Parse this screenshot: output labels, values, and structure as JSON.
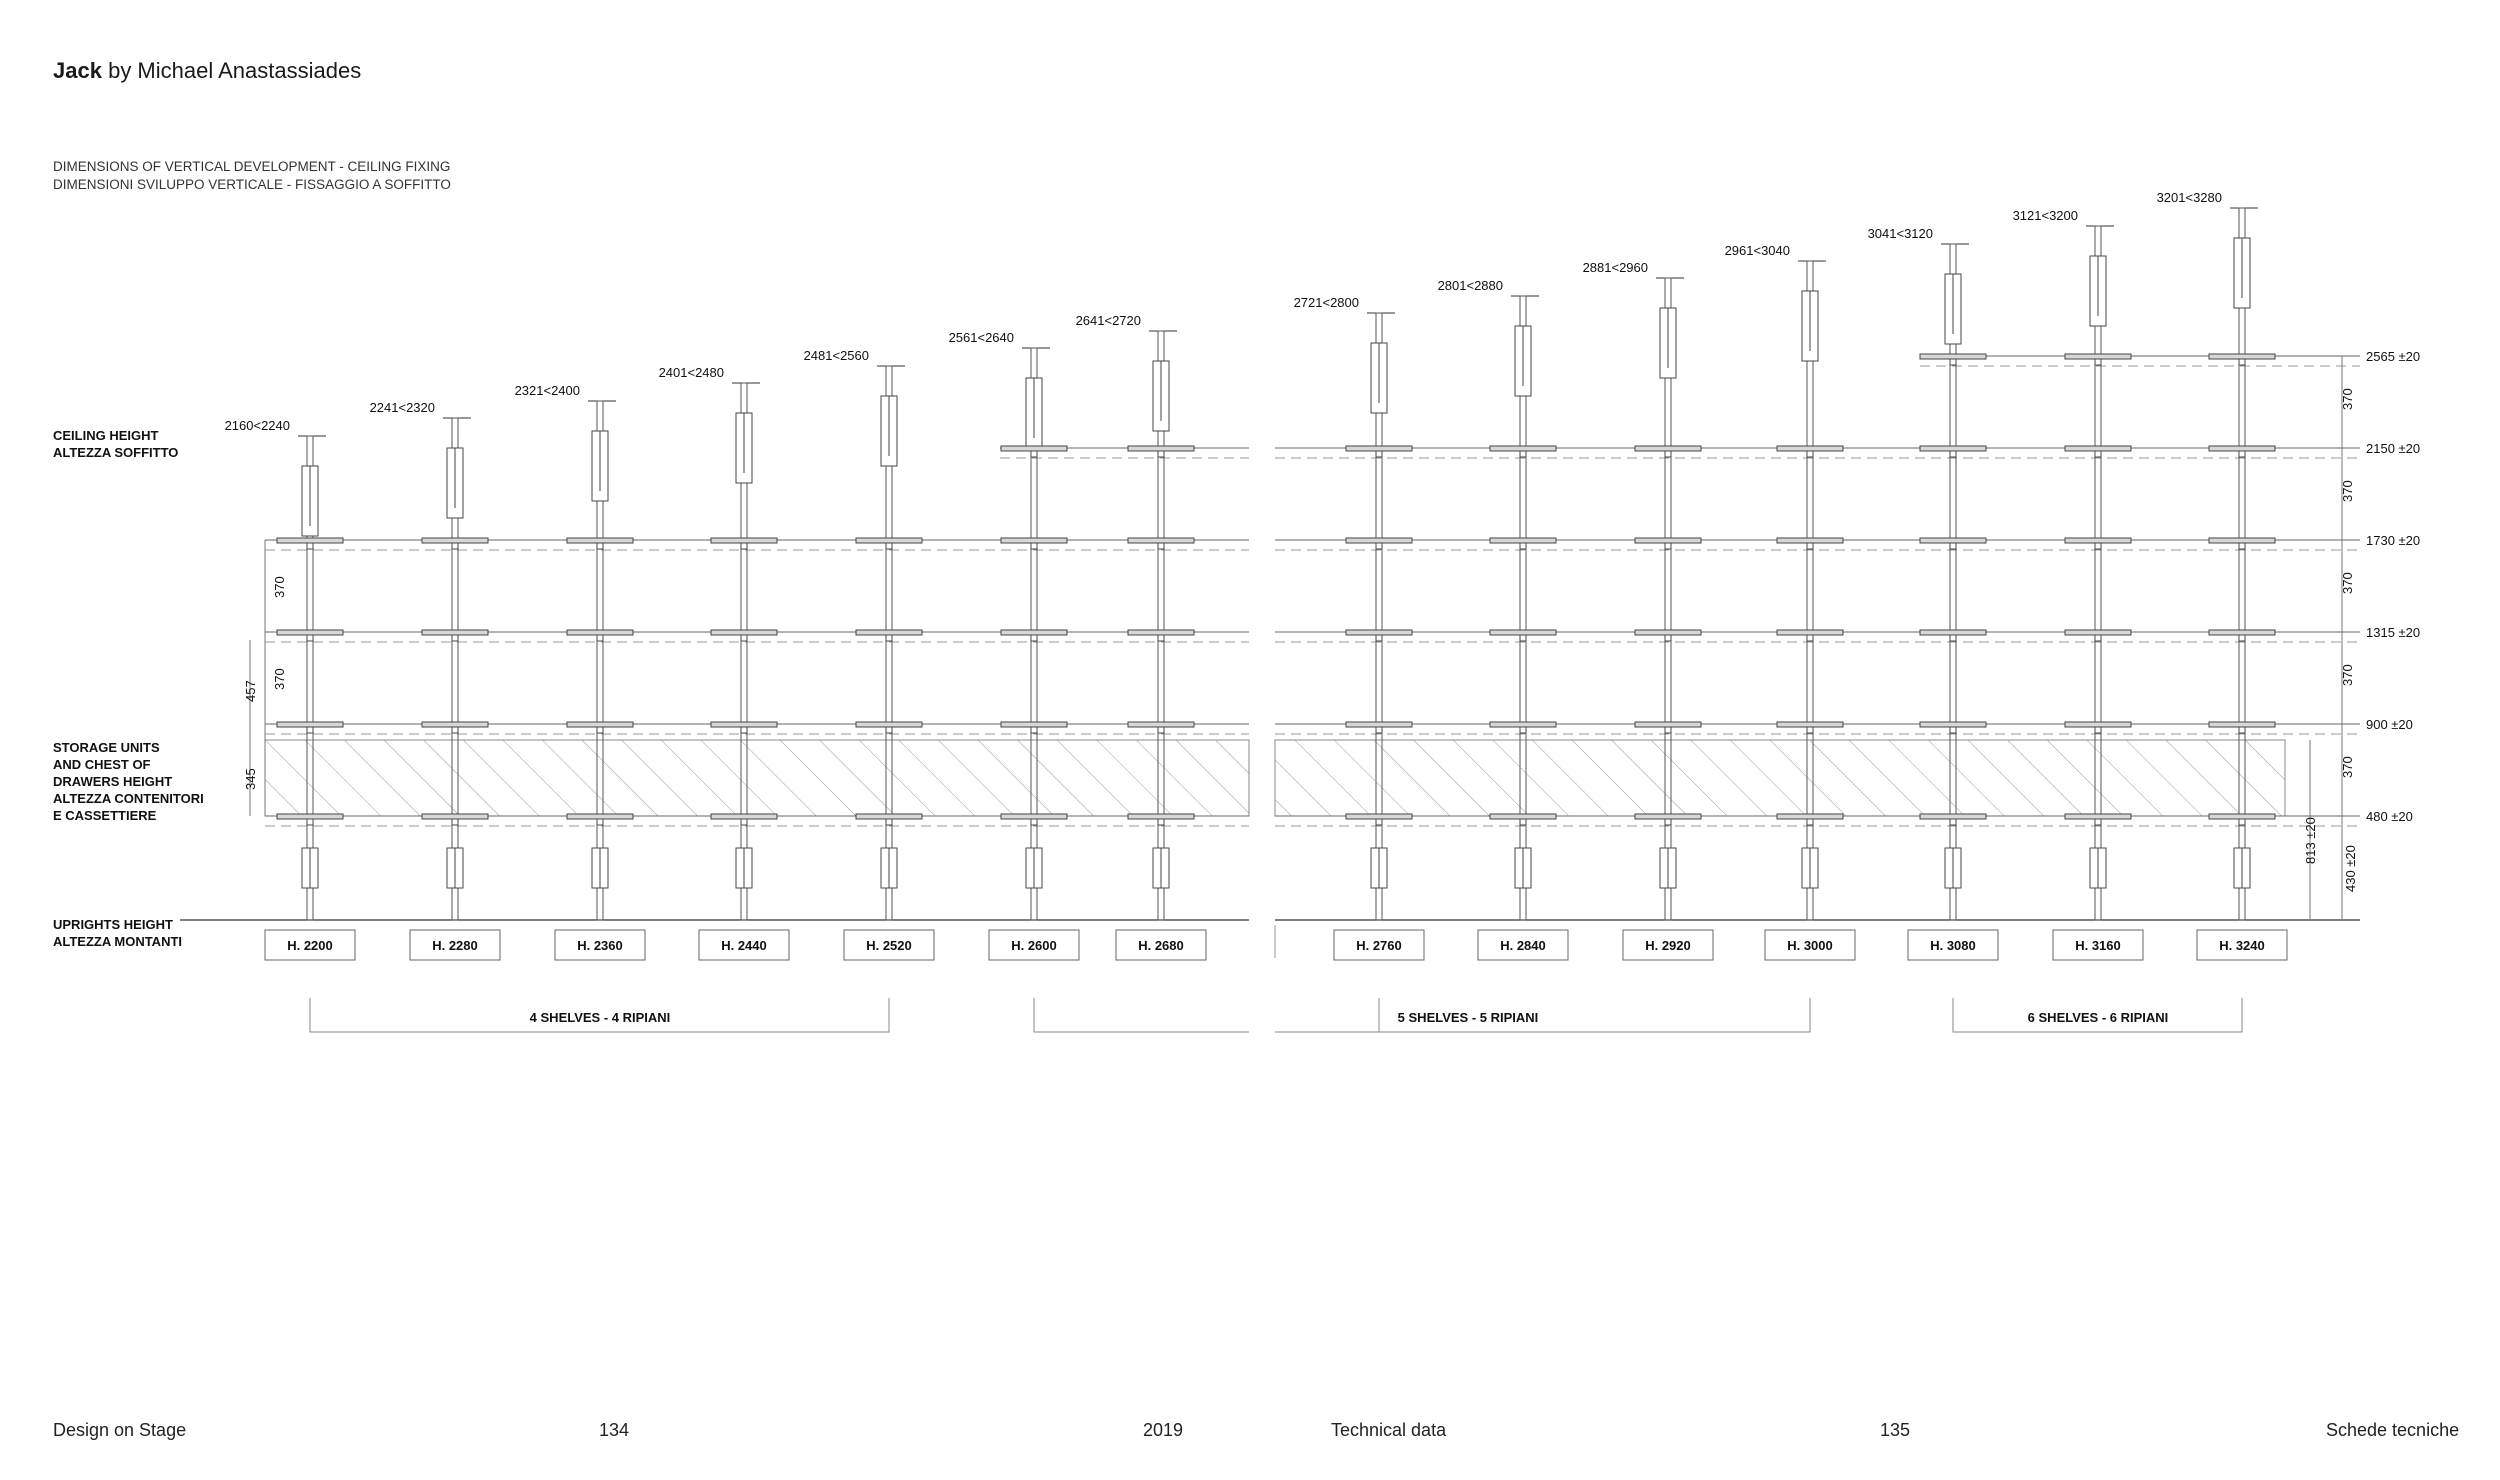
{
  "header": {
    "title_bold": "Jack",
    "title_rest": "by Michael Anastassiades",
    "subtitle_line1": "DIMENSIONS OF VERTICAL DEVELOPMENT - CEILING FIXING",
    "subtitle_line2": "DIMENSIONI SVILUPPO VERTICALE - FISSAGGIO A SOFFITTO"
  },
  "side_labels": {
    "ceiling": [
      "CEILING HEIGHT",
      "ALTEZZA SOFFITTO"
    ],
    "storage": [
      "STORAGE UNITS",
      "AND CHEST OF",
      "DRAWERS HEIGHT",
      "ALTEZZA CONTENITORI",
      "E CASSETTIERE"
    ],
    "uprights": [
      "UPRIGHTS HEIGHT",
      "ALTEZZA MONTANTI"
    ]
  },
  "columns": [
    {
      "ceiling": "2160<2240",
      "upright": "H. 2200",
      "shelves": 4
    },
    {
      "ceiling": "2241<2320",
      "upright": "H. 2280",
      "shelves": 4
    },
    {
      "ceiling": "2321<2400",
      "upright": "H. 2360",
      "shelves": 4
    },
    {
      "ceiling": "2401<2480",
      "upright": "H. 2440",
      "shelves": 4
    },
    {
      "ceiling": "2481<2560",
      "upright": "H. 2520",
      "shelves": 4
    },
    {
      "ceiling": "2561<2640",
      "upright": "H. 2600",
      "shelves": 5
    },
    {
      "ceiling": "2641<2720",
      "upright": "H. 2680",
      "shelves": 5
    },
    {
      "ceiling": "2721<2800",
      "upright": "H. 2760",
      "shelves": 5
    },
    {
      "ceiling": "2801<2880",
      "upright": "H. 2840",
      "shelves": 5
    },
    {
      "ceiling": "2881<2960",
      "upright": "H. 2920",
      "shelves": 5
    },
    {
      "ceiling": "2961<3040",
      "upright": "H. 3000",
      "shelves": 5
    },
    {
      "ceiling": "3041<3120",
      "upright": "H. 3080",
      "shelves": 6
    },
    {
      "ceiling": "3121<3200",
      "upright": "H. 3160",
      "shelves": 6
    },
    {
      "ceiling": "3201<3280",
      "upright": "H. 3240",
      "shelves": 6
    }
  ],
  "shelf_levels": [
    "2565 ±20",
    "2150 ±20",
    "1730 ±20",
    "1315 ±20",
    "900 ±20",
    "480 ±20"
  ],
  "right_spacings": [
    "370",
    "370",
    "370",
    "370",
    "370"
  ],
  "left_dims": {
    "spacing": "370",
    "spacing2": "370",
    "storage_total": "457",
    "storage": "345"
  },
  "vertical_dims": {
    "floor_to_first": "430 ±20",
    "storage_overall": "813 ±20"
  },
  "groups": [
    {
      "label": "4 SHELVES - 4 RIPIANI"
    },
    {
      "label": "5 SHELVES - 5 RIPIANI"
    },
    {
      "label": "6 SHELVES - 6 RIPIANI"
    }
  ],
  "footer": {
    "left_title": "Design on Stage",
    "left_page": "134",
    "year": "2019",
    "right_title": "Technical data",
    "right_page": "135",
    "right_italian": "Schede tecniche"
  }
}
